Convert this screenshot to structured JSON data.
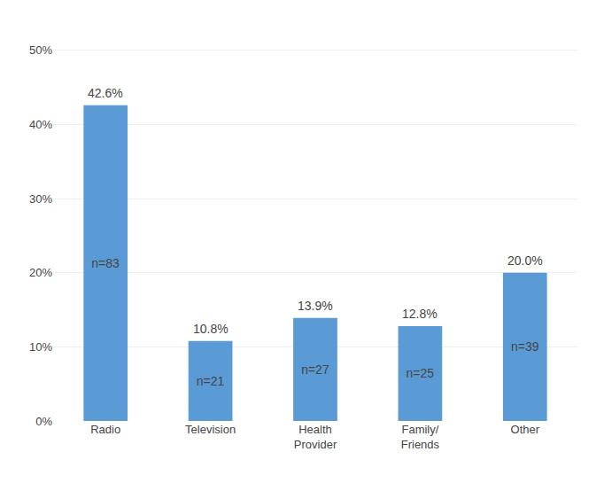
{
  "chart_data": {
    "type": "bar",
    "categories": [
      "Radio",
      "Television",
      "Health\nProvider",
      "Family/\nFriends",
      "Other"
    ],
    "values": [
      42.6,
      10.8,
      13.9,
      12.8,
      20.0
    ],
    "value_labels": [
      "42.6%",
      "10.8%",
      "13.9%",
      "12.8%",
      "20.0%"
    ],
    "n_labels": [
      "n=83",
      "n=21",
      "n=27",
      "n=25",
      "n=39"
    ],
    "color": "#5B9BD5",
    "ylim": [
      0,
      52
    ],
    "yticks": [
      {
        "value": 0,
        "label": "0%"
      },
      {
        "value": 10,
        "label": "10%"
      },
      {
        "value": 20,
        "label": "20%"
      },
      {
        "value": 30,
        "label": "30%"
      },
      {
        "value": 40,
        "label": "40%"
      },
      {
        "value": 50,
        "label": "50%"
      }
    ],
    "grid": true,
    "data_labels": true
  }
}
